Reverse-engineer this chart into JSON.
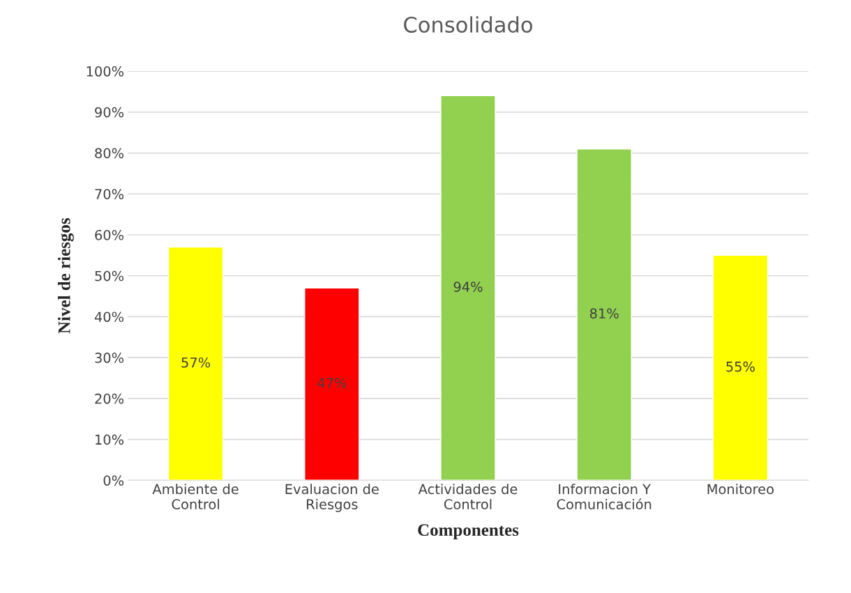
{
  "chart_data": {
    "type": "bar",
    "title": "Consolidado",
    "xlabel": "Componentes",
    "ylabel": "Nivel de riesgos",
    "categories": [
      "Ambiente de\nControl",
      "Evaluacion de\nRiesgos",
      "Actividades de\nControl",
      "Informacion Y\nComunicación",
      "Monitoreo"
    ],
    "values": [
      57,
      47,
      94,
      81,
      55
    ],
    "colors": [
      "#ffff00",
      "#ff0000",
      "#92d050",
      "#92d050",
      "#ffff00"
    ],
    "value_labels": [
      "57%",
      "47%",
      "94%",
      "81%",
      "55%"
    ],
    "ylim": [
      0,
      100
    ],
    "yticks": [
      {
        "value": 0,
        "label": "0%"
      },
      {
        "value": 10,
        "label": "10%"
      },
      {
        "value": 20,
        "label": "20%"
      },
      {
        "value": 30,
        "label": "30%"
      },
      {
        "value": 40,
        "label": "40%"
      },
      {
        "value": 50,
        "label": "50%"
      },
      {
        "value": 60,
        "label": "60%"
      },
      {
        "value": 70,
        "label": "70%"
      },
      {
        "value": 80,
        "label": "80%"
      },
      {
        "value": 90,
        "label": "90%"
      },
      {
        "value": 100,
        "label": "100%"
      }
    ],
    "grid": "y",
    "legend": false
  }
}
